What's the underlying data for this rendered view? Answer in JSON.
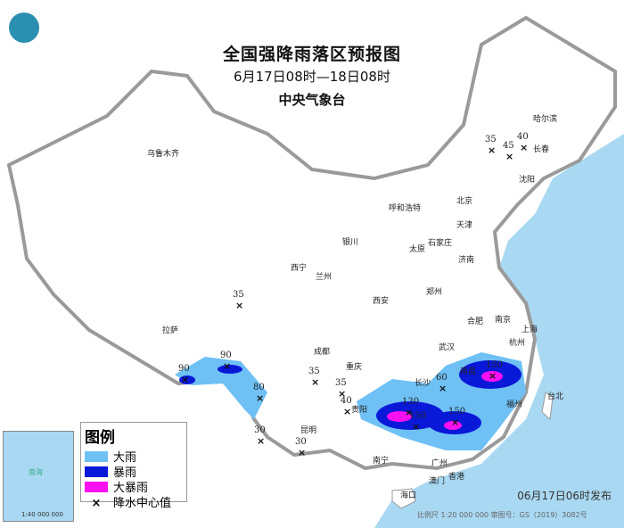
{
  "title": "全国强降雨落区预报图",
  "period": "6月17日08时—18日08时",
  "issuer": "中央气象台",
  "legend": {
    "title": "图例",
    "items": [
      {
        "label": "大雨",
        "color": "#6ec0f5"
      },
      {
        "label": "暴雨",
        "color": "#0a18d8"
      },
      {
        "label": "大暴雨",
        "color": "#ff10f0"
      },
      {
        "label": "降水中心值",
        "symbol": "×"
      }
    ]
  },
  "cities": [
    "乌鲁木齐",
    "哈尔滨",
    "长春",
    "沈阳",
    "北京",
    "天津",
    "呼和浩特",
    "石家庄",
    "太原",
    "银川",
    "济南",
    "西宁",
    "兰州",
    "郑州",
    "西安",
    "合肥",
    "南京",
    "上海",
    "杭州",
    "武汉",
    "成都",
    "重庆",
    "长沙",
    "南昌",
    "贵阳",
    "福州",
    "拉萨",
    "昆明",
    "南宁",
    "广州",
    "澳门",
    "香港",
    "海口",
    "台北"
  ],
  "rain_centers": [
    35,
    45,
    40,
    35,
    90,
    90,
    80,
    35,
    35,
    40,
    60,
    150,
    130,
    150,
    150,
    30,
    30
  ],
  "published": "06月17日06时发布",
  "scale_note": "比例尺 1:20 000 000    审图号：GS（2019）3082号",
  "inset": {
    "label": "南海",
    "scale": "1:40 000 000"
  },
  "colors": {
    "sea": "#a9d8f2",
    "border": "#9a9a9a"
  }
}
